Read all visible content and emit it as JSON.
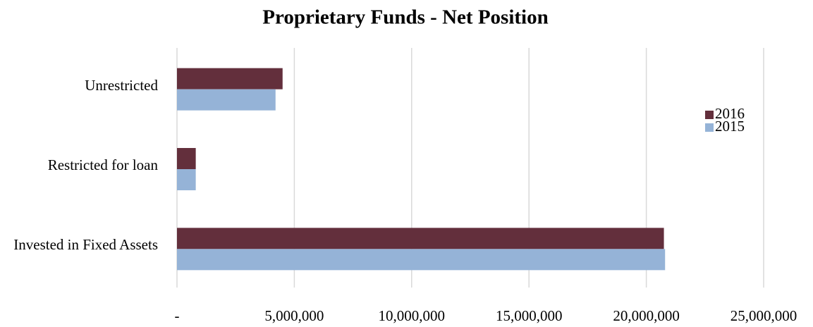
{
  "chart_data": {
    "type": "bar",
    "orientation": "horizontal",
    "title": "Proprietary Funds - Net Position",
    "categories": [
      "Unrestricted",
      "Restricted for loan",
      "Invested in Fixed Assets"
    ],
    "series": [
      {
        "name": "2016",
        "color": "#632f3c",
        "values": [
          4500000,
          800000,
          20750000
        ]
      },
      {
        "name": "2015",
        "color": "#95b3d7",
        "values": [
          4200000,
          800000,
          20800000
        ]
      }
    ],
    "xlim": [
      0,
      25000000
    ],
    "xticks": [
      {
        "value": 0,
        "label": "-"
      },
      {
        "value": 5000000,
        "label": "5,000,000"
      },
      {
        "value": 10000000,
        "label": "10,000,000"
      },
      {
        "value": 15000000,
        "label": "15,000,000"
      },
      {
        "value": 20000000,
        "label": "20,000,000"
      },
      {
        "value": 25000000,
        "label": "25,000,000"
      }
    ],
    "grid": true,
    "legend": "right"
  }
}
